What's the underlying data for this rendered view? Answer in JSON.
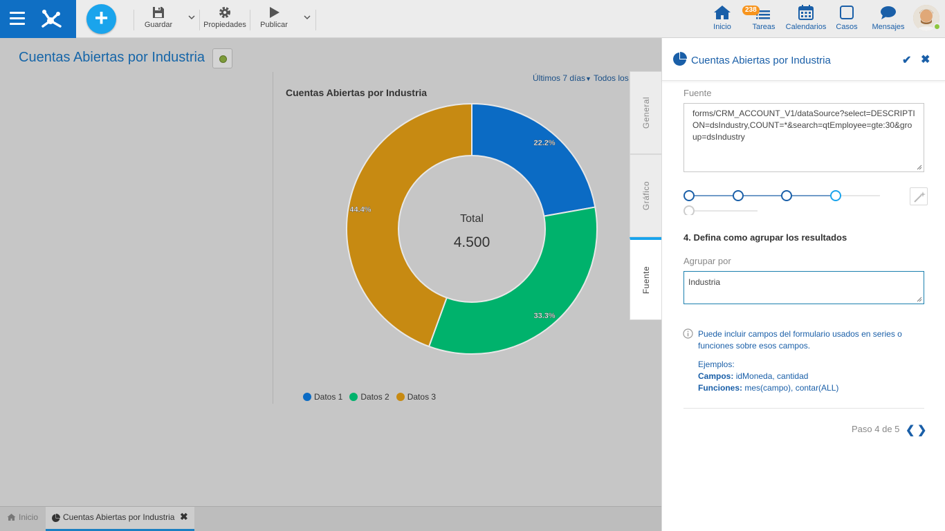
{
  "toolbar": {
    "save_label": "Guardar",
    "properties_label": "Propiedades",
    "publish_label": "Publicar"
  },
  "nav": {
    "home_label": "Inicio",
    "tasks_label": "Tareas",
    "tasks_badge": "238",
    "calendars_label": "Calendarios",
    "cases_label": "Casos",
    "messages_label": "Mensajes"
  },
  "page": {
    "title": "Cuentas Abiertas por Industria"
  },
  "chart_data": {
    "type": "pie",
    "title": "Cuentas Abiertas por Industria",
    "period_label": "Últimos 7 días",
    "scope_label": "Todos los",
    "center_label": "Total",
    "center_value": "4.500",
    "categories": [
      "Datos 1",
      "Datos 2",
      "Datos 3"
    ],
    "values": [
      22.2,
      33.3,
      44.4
    ],
    "labels": [
      "22.2%",
      "33.3%",
      "44.4%"
    ],
    "colors": [
      "#0b6bc4",
      "#00b26c",
      "#c78a12"
    ],
    "legend_position": "bottom"
  },
  "tabs": {
    "general": "General",
    "grafico": "Gráfico",
    "fuente": "Fuente"
  },
  "panel": {
    "title": "Cuentas Abiertas por Industria",
    "source_label": "Fuente",
    "source_value": "forms/CRM_ACCOUNT_V1/dataSource?select=DESCRIPTION=dsIndustry,COUNT=*&search=qtEmployee=gte:30&group=dsIndustry",
    "step_title": "4. Defina como agrupar los resultados",
    "group_label": "Agrupar por",
    "group_value": "Industria",
    "info_text": "Puede incluir campos del formulario usados en series o funciones sobre esos campos.",
    "examples_label": "Ejemplos:",
    "fields_label": "Campos:",
    "fields_value": "idMoneda, cantidad",
    "functions_label": "Funciones:",
    "functions_value": "mes(campo), contar(ALL)",
    "pager": "Paso 4 de 5",
    "current_step": 4,
    "total_steps": 5
  },
  "bottom_tabs": {
    "home": "Inicio",
    "active": "Cuentas Abiertas por Industria"
  }
}
